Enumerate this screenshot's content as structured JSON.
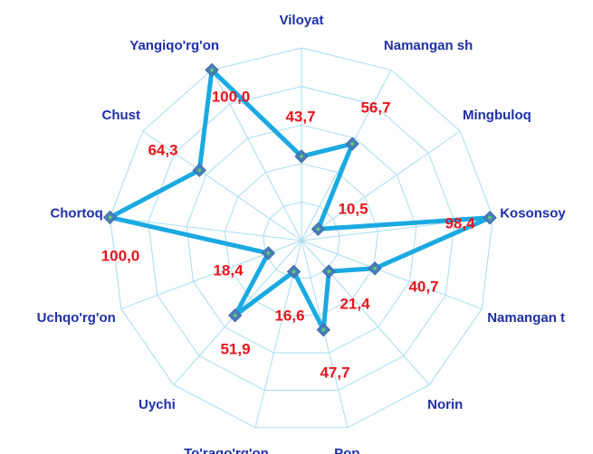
{
  "chart_data": {
    "type": "radar",
    "categories": [
      "Viloyat",
      "Namangan sh",
      "Mingbuloq",
      "Kosonsoy",
      "Namangan t",
      "Norin",
      "Pop",
      "To'raqo'rg'on",
      "Uychi",
      "Uchqo'rg'on",
      "Chortoq",
      "Chust",
      "Yangiqo'rg'on"
    ],
    "values": [
      43.7,
      56.7,
      10.5,
      98.4,
      40.7,
      21.4,
      47.7,
      16.6,
      51.9,
      18.4,
      100.0,
      64.3,
      100.0
    ],
    "value_labels": [
      "43,7",
      "56,7",
      "10,5",
      "98,4",
      "40,7",
      "21,4",
      "47,7",
      "16,6",
      "51,9",
      "18,4",
      "100,0",
      "64,3",
      "100,0"
    ],
    "color": "#1ba9e1",
    "marker_color": "#4a7ebb",
    "grid_color": "#a8dcef",
    "ylim": [
      0,
      100
    ],
    "yticks": [
      0,
      20,
      40,
      60,
      80,
      100
    ],
    "grid": true
  }
}
